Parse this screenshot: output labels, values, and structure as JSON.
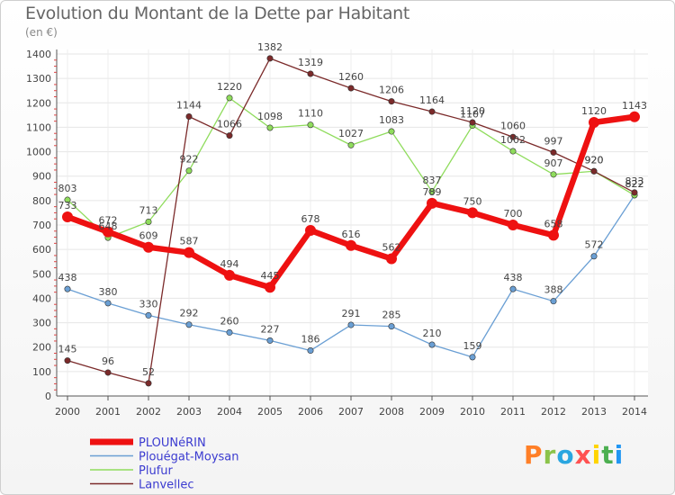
{
  "title": "Evolution du Montant de la Dette par Habitant",
  "subtitle": "(en €)",
  "logo_text": "Proxiti",
  "logo_colors": [
    "#ff7f27",
    "#8bc34a",
    "#2aa6e0",
    "#ff5252",
    "#ffd400",
    "#4caf50",
    "#2196f3"
  ],
  "chart_data": {
    "type": "line",
    "x": [
      "2000",
      "2001",
      "2002",
      "2003",
      "2004",
      "2005",
      "2006",
      "2007",
      "2008",
      "2009",
      "2010",
      "2011",
      "2012",
      "2013",
      "2014"
    ],
    "ylim": [
      0,
      1400
    ],
    "yticks": [
      0,
      100,
      200,
      300,
      400,
      500,
      600,
      700,
      800,
      900,
      1000,
      1100,
      1200,
      1300,
      1400
    ],
    "grid": true,
    "legend_position": "bottom-left",
    "series": [
      {
        "name": "PLOUNéRIN",
        "color": "#ee1111",
        "style": "thick",
        "values": [
          733,
          672,
          609,
          587,
          494,
          445,
          678,
          616,
          562,
          789,
          750,
          700,
          658,
          1120,
          1143
        ],
        "labels": [
          "733",
          "672",
          "609",
          "587",
          "494",
          "445",
          "678",
          "616",
          "562",
          "789",
          "750",
          "700",
          "658",
          "1120",
          "1143"
        ]
      },
      {
        "name": "Plouégat-Moysan",
        "color": "#6a9fd4",
        "style": "thin",
        "values": [
          438,
          380,
          330,
          292,
          260,
          227,
          186,
          291,
          285,
          210,
          159,
          438,
          388,
          572,
          822
        ],
        "labels": [
          "438",
          "380",
          "330",
          "292",
          "260",
          "227",
          "186",
          "291",
          "285",
          "210",
          "159",
          "438",
          "388",
          "572",
          "822"
        ]
      },
      {
        "name": "Plufur",
        "color": "#8fdc5c",
        "style": "thin",
        "values": [
          803,
          648,
          713,
          922,
          1220,
          1098,
          1110,
          1027,
          1083,
          837,
          1107,
          1002,
          907,
          920,
          822
        ],
        "labels": [
          "803",
          "648",
          "713",
          "922",
          "1220",
          "1098",
          "1110",
          "1027",
          "1083",
          "837",
          "1107",
          "1002",
          "907",
          "920",
          "822"
        ]
      },
      {
        "name": "Lanvellec",
        "color": "#7b2a2a",
        "style": "thin",
        "values": [
          145,
          96,
          52,
          1144,
          1066,
          1382,
          1319,
          1260,
          1206,
          1164,
          1120,
          1060,
          997,
          920,
          833
        ],
        "labels": [
          "145",
          "96",
          "52",
          "1144",
          "1066",
          "1382",
          "1319",
          "1260",
          "1206",
          "1164",
          "1120",
          "1060",
          "997",
          "920",
          "833"
        ]
      }
    ]
  }
}
